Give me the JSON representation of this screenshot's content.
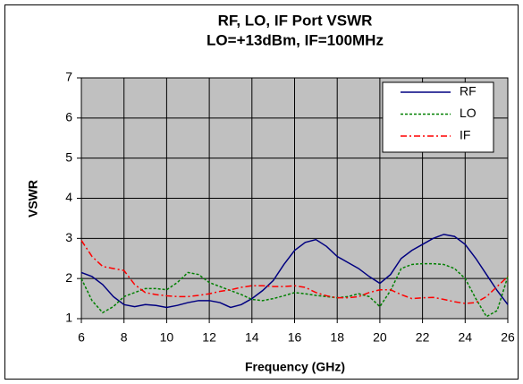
{
  "chart_data": {
    "type": "line",
    "title": "RF, LO, IF Port VSWR",
    "subtitle": "LO=+13dBm, IF=100MHz",
    "x_label": "Frequency (GHz)",
    "y_label": "VSWR",
    "x": [
      6,
      6.5,
      7,
      7.5,
      8,
      8.5,
      9,
      9.5,
      10,
      10.5,
      11,
      11.5,
      12,
      12.5,
      13,
      13.5,
      14,
      14.5,
      15,
      15.5,
      16,
      16.5,
      17,
      17.5,
      18,
      18.5,
      19,
      19.5,
      20,
      20.5,
      21,
      21.5,
      22,
      22.5,
      23,
      23.5,
      24,
      24.5,
      25,
      25.5,
      26
    ],
    "series": [
      {
        "name": "RF",
        "color": "#000080",
        "dash": "none",
        "values": [
          2.15,
          2.05,
          1.85,
          1.55,
          1.35,
          1.3,
          1.35,
          1.33,
          1.28,
          1.33,
          1.4,
          1.45,
          1.45,
          1.4,
          1.28,
          1.35,
          1.5,
          1.7,
          1.95,
          2.35,
          2.7,
          2.9,
          2.97,
          2.8,
          2.55,
          2.4,
          2.25,
          2.05,
          1.88,
          2.1,
          2.5,
          2.7,
          2.85,
          3.0,
          3.1,
          3.05,
          2.85,
          2.5,
          2.1,
          1.7,
          1.35
        ]
      },
      {
        "name": "LO",
        "color": "#008000",
        "dash": "3,2",
        "values": [
          2.0,
          1.45,
          1.15,
          1.3,
          1.55,
          1.65,
          1.75,
          1.75,
          1.72,
          1.9,
          2.15,
          2.1,
          1.9,
          1.8,
          1.7,
          1.6,
          1.48,
          1.45,
          1.5,
          1.57,
          1.65,
          1.62,
          1.58,
          1.55,
          1.52,
          1.55,
          1.62,
          1.55,
          1.3,
          1.7,
          2.25,
          2.35,
          2.37,
          2.37,
          2.35,
          2.25,
          2.0,
          1.5,
          1.05,
          1.2,
          2.05
        ]
      },
      {
        "name": "IF",
        "color": "#ff0000",
        "dash": "7,3,2,3",
        "values": [
          2.95,
          2.55,
          2.3,
          2.25,
          2.2,
          1.85,
          1.65,
          1.6,
          1.57,
          1.55,
          1.55,
          1.58,
          1.62,
          1.68,
          1.72,
          1.78,
          1.82,
          1.82,
          1.8,
          1.8,
          1.82,
          1.78,
          1.65,
          1.57,
          1.52,
          1.52,
          1.55,
          1.65,
          1.72,
          1.72,
          1.6,
          1.5,
          1.52,
          1.53,
          1.48,
          1.42,
          1.38,
          1.4,
          1.55,
          1.8,
          2.05
        ]
      }
    ],
    "xlim": [
      6,
      26
    ],
    "xticks": [
      6,
      8,
      10,
      12,
      14,
      16,
      18,
      20,
      22,
      24,
      26
    ],
    "ylim": [
      1,
      7
    ],
    "yticks": [
      1,
      2,
      3,
      4,
      5,
      6,
      7
    ],
    "grid": true,
    "legend": "upper right",
    "plot_background": "#c0c0c0"
  }
}
